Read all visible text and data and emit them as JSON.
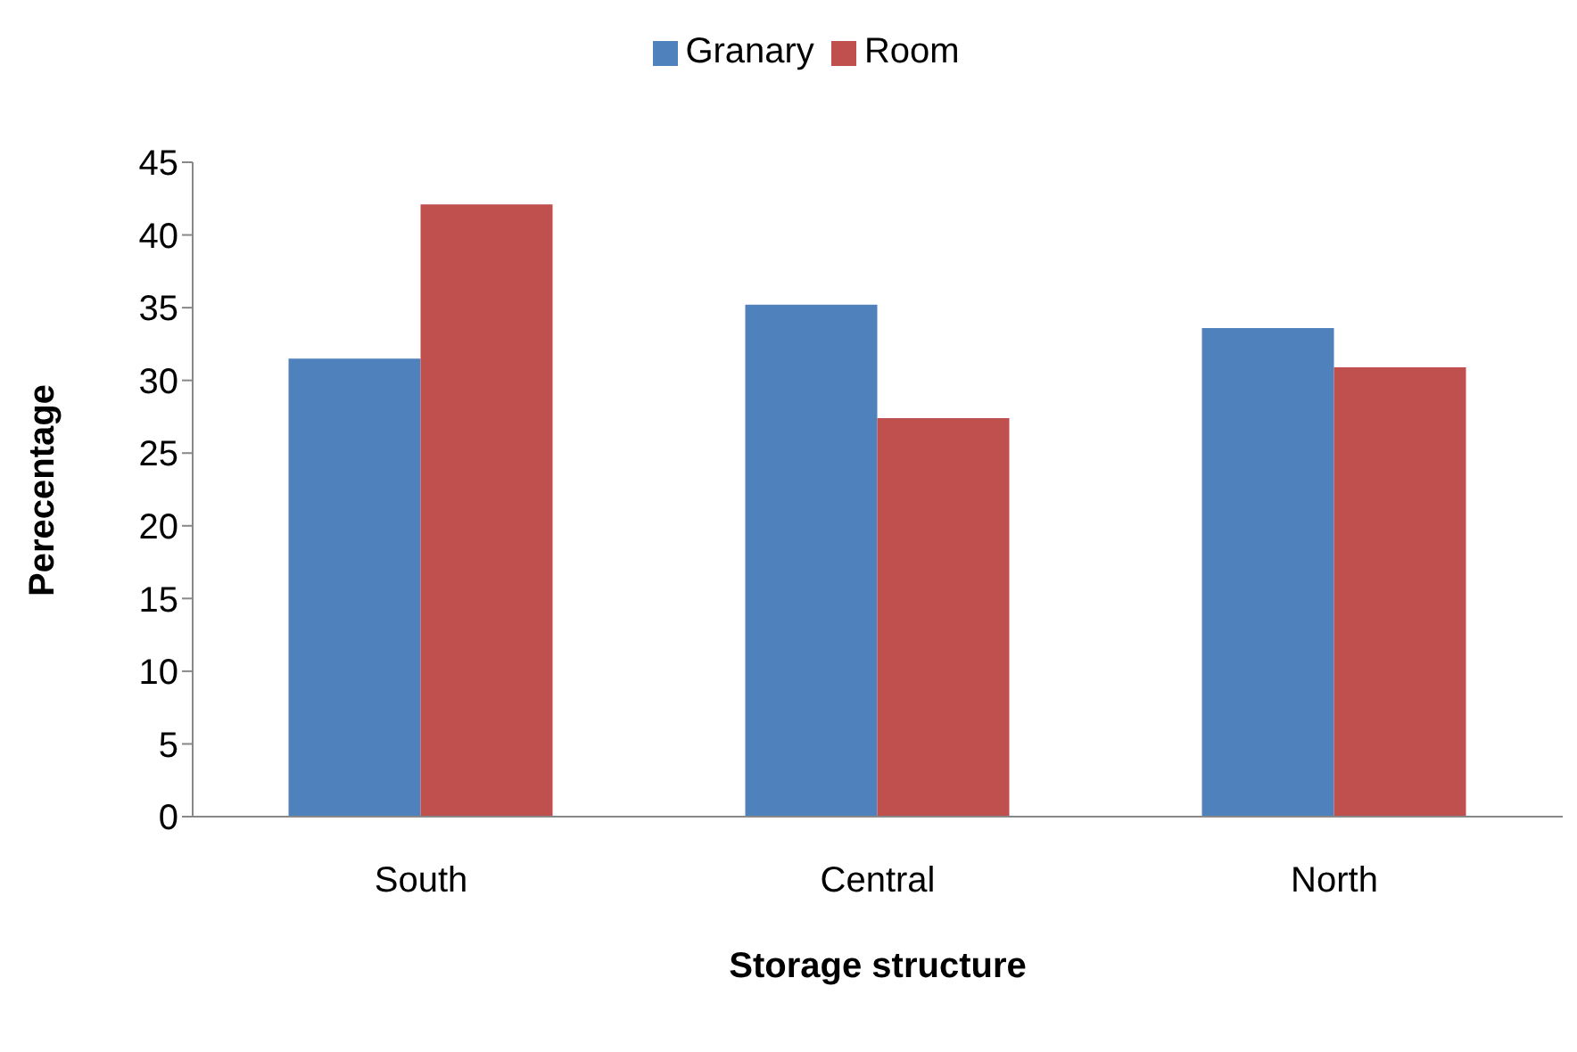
{
  "chart_data": {
    "type": "bar",
    "xlabel": "Storage structure",
    "ylabel": "Perecentage",
    "categories": [
      "South",
      "Central",
      "North"
    ],
    "series": [
      {
        "name": "Granary",
        "color": "#4f81bd",
        "values": [
          31.5,
          35.2,
          33.6
        ]
      },
      {
        "name": "Room",
        "color": "#c0504d",
        "values": [
          42.1,
          27.4,
          30.9
        ]
      }
    ],
    "ylim": [
      0,
      45
    ],
    "yticks": [
      0,
      5,
      10,
      15,
      20,
      25,
      30,
      35,
      40,
      45
    ],
    "grid": false,
    "legend": "top"
  }
}
